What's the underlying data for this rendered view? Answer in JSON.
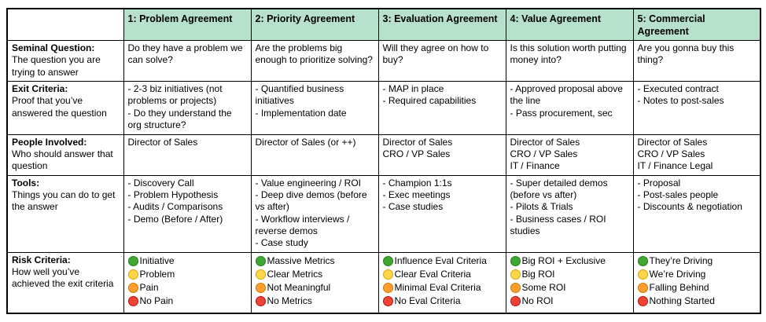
{
  "colors": {
    "header_bg": "#b7e1cd",
    "dot_colors": {
      "green": {
        "fill": "#3ea832",
        "border": "#2a7a1f"
      },
      "yellow": {
        "fill": "#ffd54a",
        "border": "#d4a900"
      },
      "orange": {
        "fill": "#ff9d2e",
        "border": "#cc7a00"
      },
      "red": {
        "fill": "#ef4335",
        "border": "#b3150f"
      }
    }
  },
  "table": {
    "columns": [
      {
        "label": ""
      },
      {
        "label": "1: Problem Agreement"
      },
      {
        "label": "2: Priority Agreement"
      },
      {
        "label": "3: Evaluation Agreement"
      },
      {
        "label": "4: Value Agreement"
      },
      {
        "label": "5: Commercial Agreement"
      }
    ],
    "rows": [
      {
        "label": "Seminal Question:",
        "description": "The question you are trying to answer",
        "cells": [
          {
            "lines": [
              "Do they have a problem we can solve?"
            ]
          },
          {
            "lines": [
              "Are the problems big enough to prioritize solving?"
            ]
          },
          {
            "lines": [
              "Will they agree on how to buy?"
            ]
          },
          {
            "lines": [
              "Is this solution worth putting money into?"
            ]
          },
          {
            "lines": [
              "Are you gonna buy this thing?"
            ]
          }
        ]
      },
      {
        "label": "Exit Criteria:",
        "description": "Proof that you’ve answered the question",
        "cells": [
          {
            "lines": [
              "- 2-3 biz initiatives (not problems or projects)",
              "- Do they understand the org structure?"
            ]
          },
          {
            "lines": [
              "- Quantified business initiatives",
              "- Implementation date"
            ]
          },
          {
            "lines": [
              "- MAP in place",
              "- Required capabilities"
            ]
          },
          {
            "lines": [
              "- Approved proposal above the line",
              "- Pass procurement, sec"
            ]
          },
          {
            "lines": [
              "- Executed contract",
              "- Notes to post-sales"
            ]
          }
        ]
      },
      {
        "label": "People Involved:",
        "description": "Who should answer that question",
        "cells": [
          {
            "lines": [
              "Director of Sales"
            ]
          },
          {
            "lines": [
              "Director of Sales (or ++)"
            ]
          },
          {
            "lines": [
              "Director of Sales",
              "CRO / VP Sales"
            ]
          },
          {
            "lines": [
              "Director of Sales",
              "CRO / VP Sales",
              "IT / Finance"
            ]
          },
          {
            "lines": [
              "Director of Sales",
              "CRO / VP Sales",
              "IT / Finance Legal"
            ]
          }
        ]
      },
      {
        "label": "Tools:",
        "description": "Things you can do to get the answer",
        "cells": [
          {
            "lines": [
              "- Discovery Call",
              "- Problem Hypothesis",
              "- Audits / Comparisons",
              "- Demo (Before / After)"
            ]
          },
          {
            "lines": [
              "- Value engineering / ROI",
              "- Deep dive demos (before vs after)",
              "- Workflow interviews / reverse demos",
              "- Case study"
            ]
          },
          {
            "lines": [
              "- Champion 1:1s",
              "- Exec meetings",
              "- Case studies"
            ]
          },
          {
            "lines": [
              "- Super detailed demos (before vs after)",
              "- Pilots & Trials",
              "- Business cases / ROI studies"
            ]
          },
          {
            "lines": [
              "- Proposal",
              "- Post-sales people",
              "- Discounts & negotiation"
            ]
          }
        ]
      },
      {
        "label": "Risk Criteria:",
        "description": "How well you’ve achieved the exit criteria",
        "cells": [
          {
            "items": [
              {
                "color": "green",
                "text": "Initiative"
              },
              {
                "color": "yellow",
                "text": "Problem"
              },
              {
                "color": "orange",
                "text": "Pain"
              },
              {
                "color": "red",
                "text": "No Pain"
              }
            ]
          },
          {
            "items": [
              {
                "color": "green",
                "text": "Massive Metrics"
              },
              {
                "color": "yellow",
                "text": "Clear Metrics"
              },
              {
                "color": "orange",
                "text": "Not Meaningful"
              },
              {
                "color": "red",
                "text": "No Metrics"
              }
            ]
          },
          {
            "items": [
              {
                "color": "green",
                "text": "Influence Eval Criteria"
              },
              {
                "color": "yellow",
                "text": "Clear Eval Criteria"
              },
              {
                "color": "orange",
                "text": "Minimal Eval Criteria"
              },
              {
                "color": "red",
                "text": "No Eval Criteria"
              }
            ]
          },
          {
            "items": [
              {
                "color": "green",
                "text": "Big ROI + Exclusive"
              },
              {
                "color": "yellow",
                "text": "Big ROI"
              },
              {
                "color": "orange",
                "text": "Some ROI"
              },
              {
                "color": "red",
                "text": "No ROI"
              }
            ]
          },
          {
            "items": [
              {
                "color": "green",
                "text": "They’re Driving"
              },
              {
                "color": "yellow",
                "text": "We’re Driving"
              },
              {
                "color": "orange",
                "text": "Falling Behind"
              },
              {
                "color": "red",
                "text": "Nothing Started"
              }
            ]
          }
        ]
      }
    ]
  }
}
